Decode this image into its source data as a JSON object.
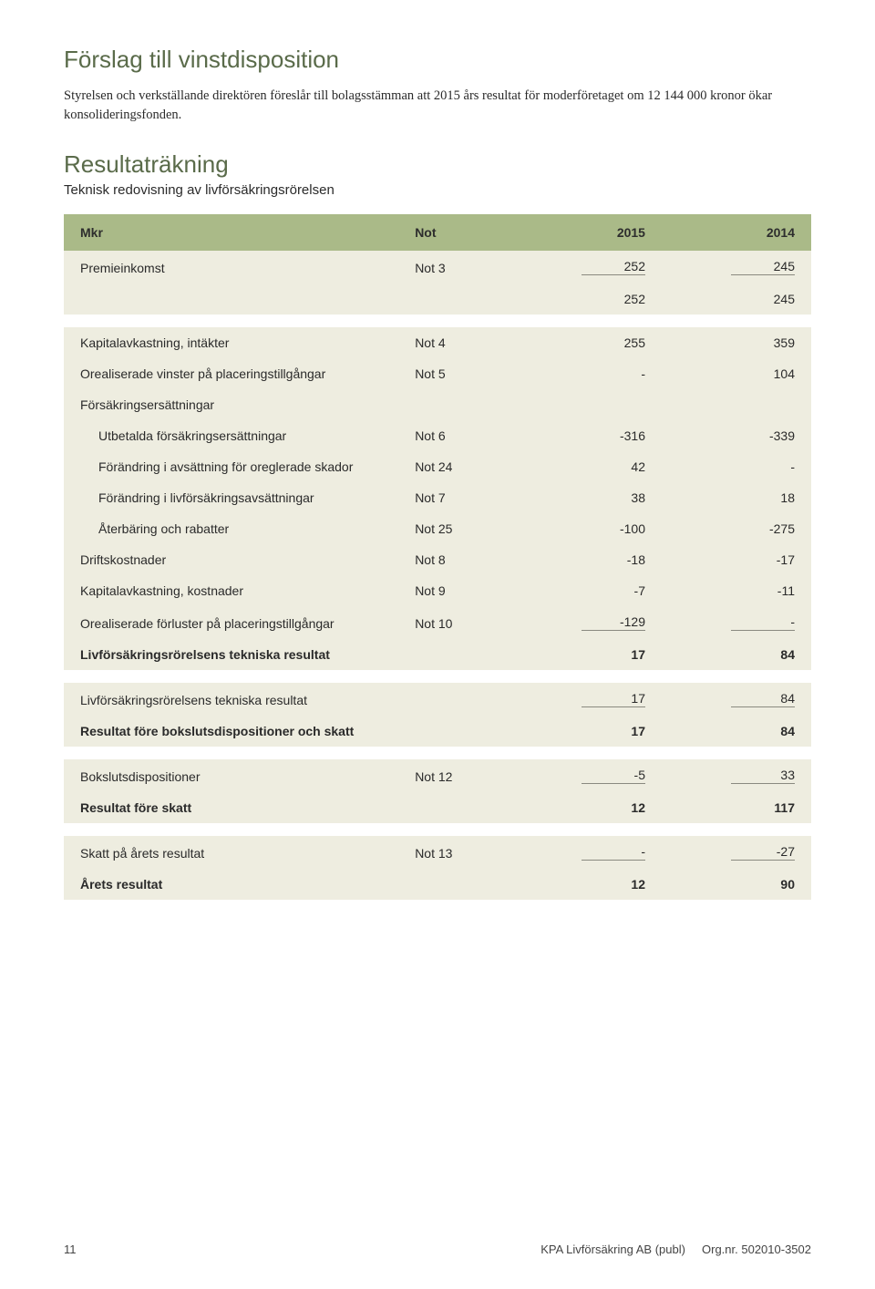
{
  "section1": {
    "title": "Förslag till vinstdisposition",
    "intro": "Styrelsen och verkställande direktören föreslår till bolagsstämman att 2015 års resultat för moderföretaget om 12 144 000 kronor ökar konsolideringsfonden."
  },
  "section2": {
    "title": "Resultaträkning",
    "subtitle": "Teknisk redovisning av livförsäkringsrörelsen"
  },
  "tbl": {
    "head": {
      "c1": "Mkr",
      "c2": "Not",
      "c3": "2015",
      "c4": "2014"
    },
    "rows": [
      {
        "type": "section",
        "label": "Premieinkomst",
        "note": "Not 3",
        "v1": "252",
        "v2": "245",
        "u": true
      },
      {
        "type": "section",
        "label": "",
        "note": "",
        "v1": "252",
        "v2": "245"
      },
      {
        "type": "spacer"
      },
      {
        "type": "section",
        "label": "Kapitalavkastning, intäkter",
        "note": "Not 4",
        "v1": "255",
        "v2": "359"
      },
      {
        "type": "section",
        "label": "Orealiserade vinster på placeringstillgångar",
        "note": "Not 5",
        "v1": "-",
        "v2": "104"
      },
      {
        "type": "section",
        "label": "Försäkringsersättningar",
        "note": "",
        "v1": "",
        "v2": ""
      },
      {
        "type": "section indent",
        "label": "Utbetalda försäkringsersättningar",
        "note": "Not 6",
        "v1": "-316",
        "v2": "-339"
      },
      {
        "type": "section indent",
        "label": "Förändring i avsättning för oreglerade skador",
        "note": "Not 24",
        "v1": "42",
        "v2": "-"
      },
      {
        "type": "section indent",
        "label": "Förändring i livförsäkringsavsättningar",
        "note": "Not 7",
        "v1": "38",
        "v2": "18"
      },
      {
        "type": "section indent",
        "label": "Återbäring och rabatter",
        "note": "Not 25",
        "v1": "-100",
        "v2": "-275"
      },
      {
        "type": "section",
        "label": "Driftskostnader",
        "note": "Not 8",
        "v1": "-18",
        "v2": "-17"
      },
      {
        "type": "section",
        "label": "Kapitalavkastning, kostnader",
        "note": "Not 9",
        "v1": "-7",
        "v2": "-11"
      },
      {
        "type": "section",
        "label": "Orealiserade förluster på placeringstillgångar",
        "note": "Not 10",
        "v1": "-129",
        "v2": "-",
        "u": true
      },
      {
        "type": "section bold",
        "label": "Livförsäkringsrörelsens tekniska resultat",
        "note": "",
        "v1": "17",
        "v2": "84"
      },
      {
        "type": "spacer"
      },
      {
        "type": "section",
        "label": "Livförsäkringsrörelsens tekniska resultat",
        "note": "",
        "v1": "17",
        "v2": "84",
        "u": true
      },
      {
        "type": "section bold",
        "label": "Resultat före bokslutsdispositioner och skatt",
        "note": "",
        "v1": "17",
        "v2": "84"
      },
      {
        "type": "spacer"
      },
      {
        "type": "section",
        "label": "Bokslutsdispositioner",
        "note": "Not 12",
        "v1": "-5",
        "v2": "33",
        "u": true
      },
      {
        "type": "section bold",
        "label": "Resultat före skatt",
        "note": "",
        "v1": "12",
        "v2": "117"
      },
      {
        "type": "spacer"
      },
      {
        "type": "section",
        "label": "Skatt på årets resultat",
        "note": "Not 13",
        "v1": "-",
        "v2": "-27",
        "u": true
      },
      {
        "type": "section bold",
        "label": "Årets resultat",
        "note": "",
        "v1": "12",
        "v2": "90"
      }
    ]
  },
  "footer": {
    "page": "11",
    "company": "KPA Livförsäkring AB (publ)",
    "org": "Org.nr. 502010-3502"
  },
  "style": {
    "header_bg": "#aaba88",
    "section_bg": "#eeede0",
    "accent_text": "#5a6b4a"
  }
}
